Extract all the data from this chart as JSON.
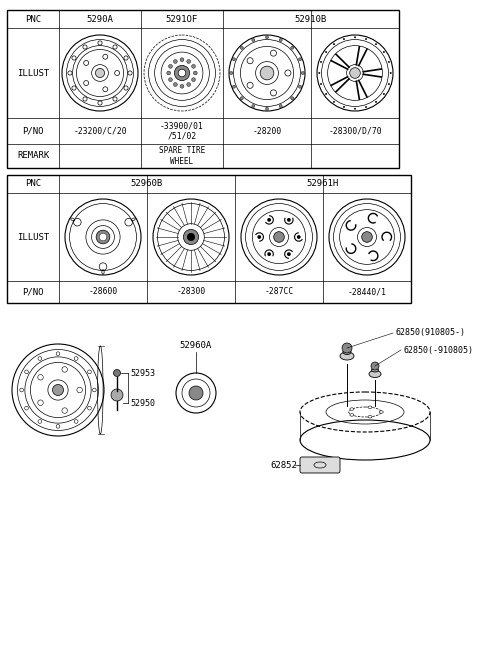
{
  "bg_color": "#ffffff",
  "table1": {
    "col_label": "PNC",
    "pnc_vals": [
      "5290A",
      "5291OF",
      "52910B"
    ],
    "illust_label": "ILLUST",
    "pno_label": "P/NO",
    "pno_vals": [
      "-23200/C/20",
      "-33900/01\n/51/02",
      "-28200",
      "-28300/D/70"
    ],
    "remark_label": "REMARK",
    "remark_val": "SPARE TIRE\nWHEEL"
  },
  "table2": {
    "col_label": "PNC",
    "pnc_vals": [
      "52960B",
      "52961H"
    ],
    "illust_label": "ILLUST",
    "pno_label": "P/NO",
    "pno_vals": [
      "-28600",
      "-28300",
      "-287CC",
      "-28440/1"
    ]
  },
  "bottom": {
    "label_52953": "52953",
    "label_52950": "52950",
    "label_52960A": "52960A",
    "label_62850a": "62850(910805-)",
    "label_62850b": "62850(-910805)",
    "label_62852": "62852"
  }
}
